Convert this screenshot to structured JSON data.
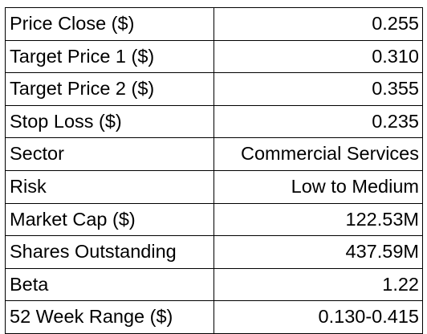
{
  "table": {
    "rows": [
      {
        "label": "Price Close ($)",
        "value": "0.255"
      },
      {
        "label": "Target Price 1 ($)",
        "value": "0.310"
      },
      {
        "label": "Target Price 2 ($)",
        "value": "0.355"
      },
      {
        "label": "Stop Loss ($)",
        "value": "0.235"
      },
      {
        "label": "Sector",
        "value": "Commercial Services"
      },
      {
        "label": "Risk",
        "value": "Low to Medium"
      },
      {
        "label": "Market Cap ($)",
        "value": "122.53M"
      },
      {
        "label": "Shares Outstanding",
        "value": "437.59M"
      },
      {
        "label": "Beta",
        "value": "1.22"
      },
      {
        "label": "52 Week Range ($)",
        "value": "0.130-0.415"
      }
    ]
  }
}
